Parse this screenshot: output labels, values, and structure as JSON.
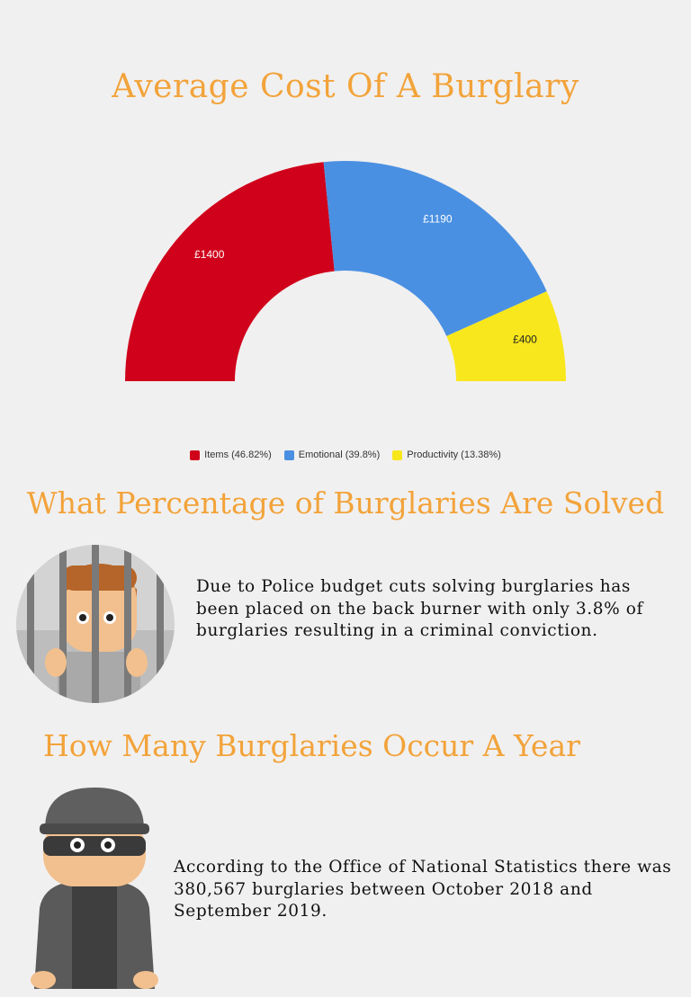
{
  "title": "Average Cost Of A Burglary",
  "chart_data": {
    "type": "pie",
    "variant": "half-donut",
    "categories": [
      "Items",
      "Emotional",
      "Productivity"
    ],
    "values": [
      1400,
      1190,
      400
    ],
    "labels": [
      "£1400",
      "£1190",
      "£400"
    ],
    "legend": [
      {
        "label": "Items (46.82%)",
        "color": "#d0021b"
      },
      {
        "label": "Emotional (39.8%)",
        "color": "#4a90e2"
      },
      {
        "label": "Productivity (13.38%)",
        "color": "#f8e71c"
      }
    ],
    "colors": [
      "#d0021b",
      "#4a90e2",
      "#f8e71c"
    ],
    "legend_position": "bottom"
  },
  "solved": {
    "heading": "What Percentage of Burglaries Are Solved",
    "text": "Due to Police budget cuts solving burglaries has been placed on the back burner with only 3.8% of burglaries resulting in a criminal conviction."
  },
  "year": {
    "heading": "How Many Burglaries Occur A Year",
    "text": "According to the Office of National Statistics there was 380,567 burglaries between October 2018 and September 2019."
  },
  "accent_color": "#f2a33a"
}
